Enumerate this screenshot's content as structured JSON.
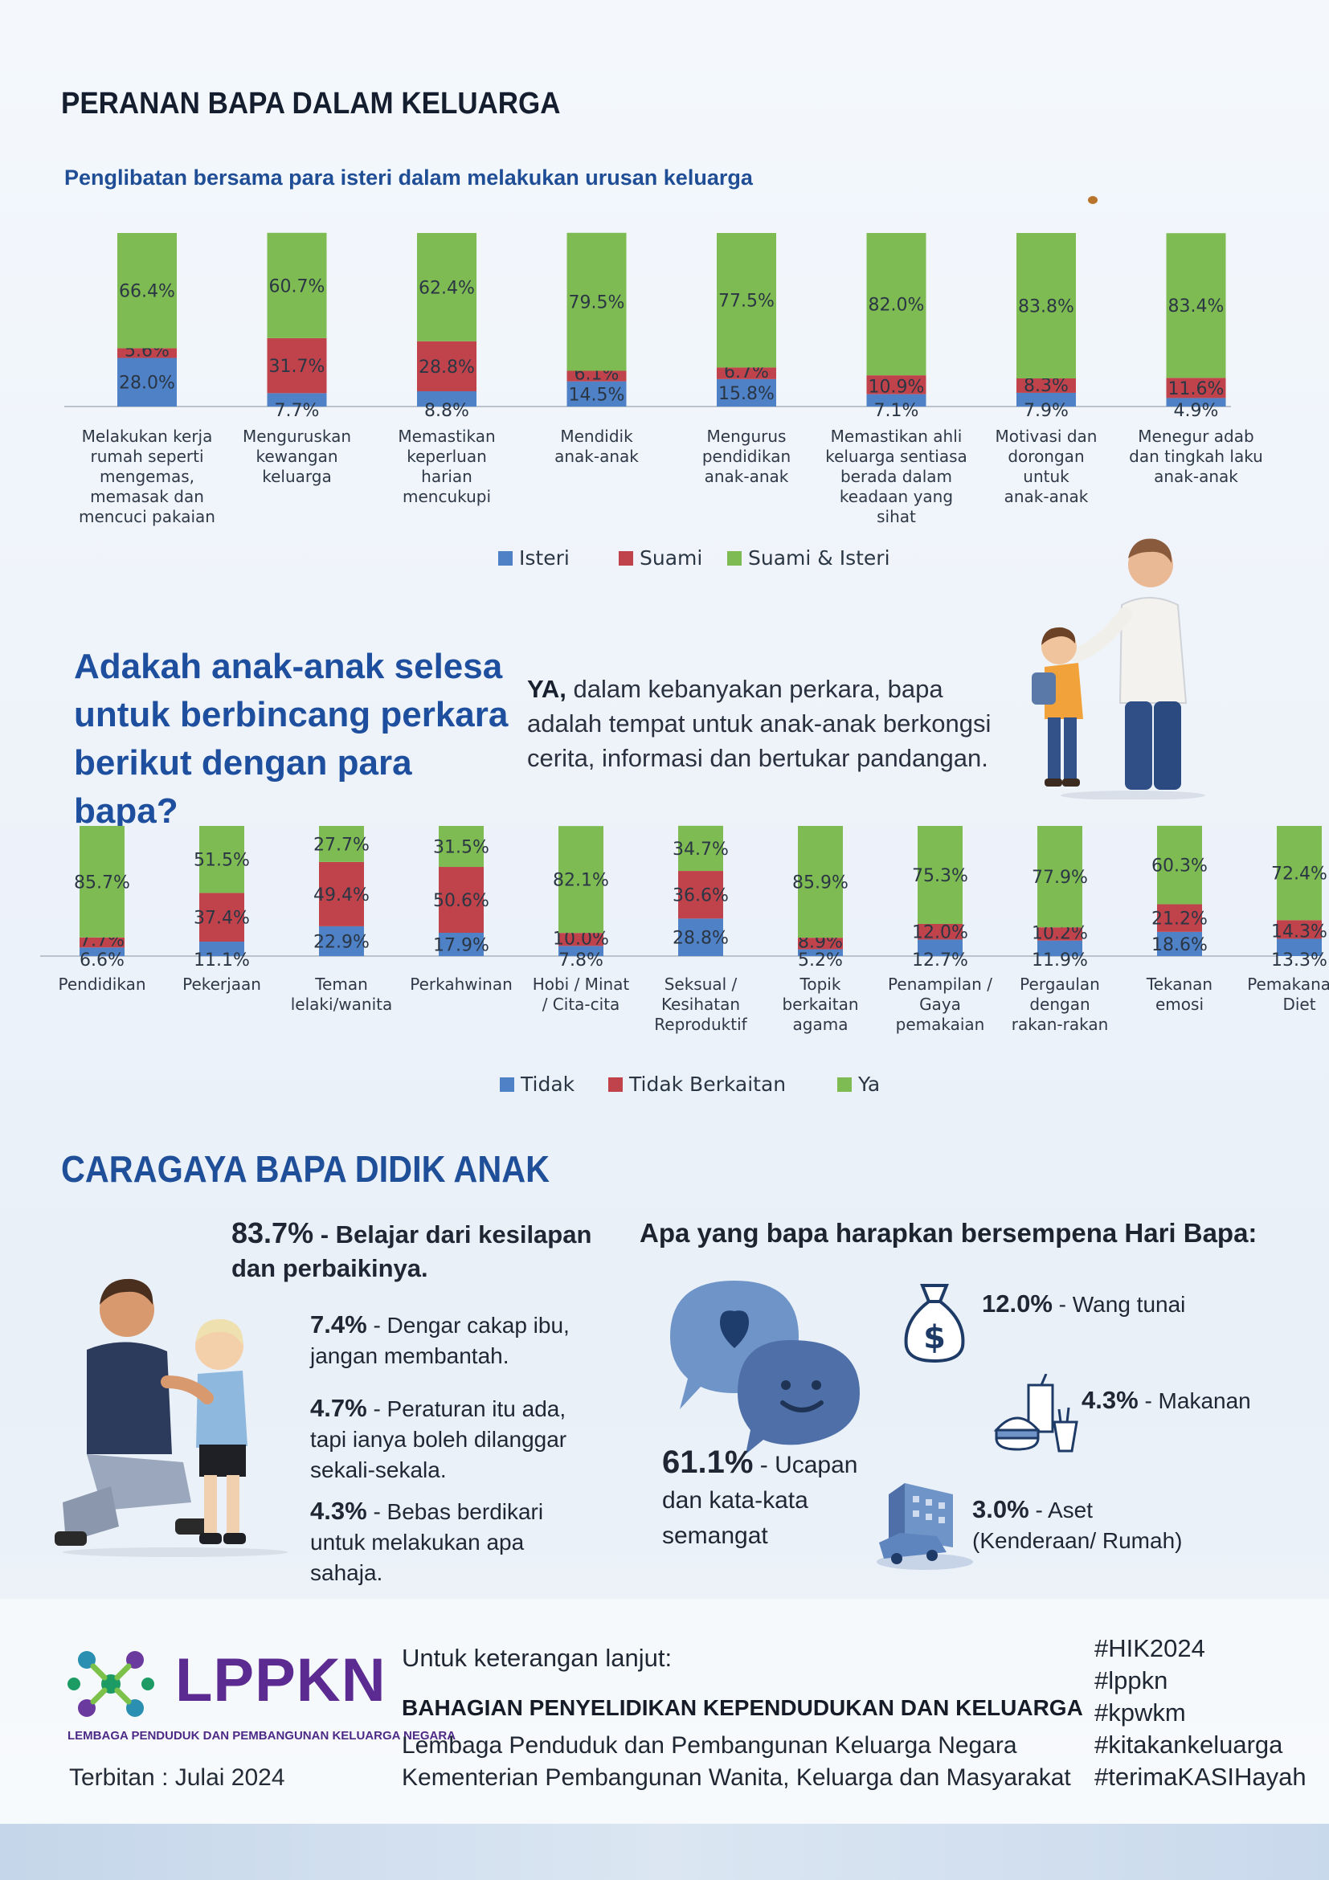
{
  "header": {
    "title": "PERANAN BAPA DALAM KELUARGA",
    "chart1_subtitle": "Penglibatan bersama para isteri dalam melakukan urusan keluarga"
  },
  "colors": {
    "blue": "#4f81c6",
    "red": "#c0434b",
    "green": "#7fbb53",
    "navy": "#1e4f9e"
  },
  "chart_data": [
    {
      "type": "bar",
      "stacked": true,
      "title": "Penglibatan bersama para isteri dalam melakukan urusan keluarga",
      "categories": [
        "Melakukan kerja rumah seperti mengemas, memasak dan mencuci pakaian",
        "Menguruskan kewangan keluarga",
        "Memastikan keperluan harian mencukupi",
        "Mendidik anak-anak",
        "Mengurus pendidikan anak-anak",
        "Memastikan ahli keluarga sentiasa berada dalam keadaan yang sihat",
        "Motivasi dan dorongan untuk anak-anak",
        "Menegur adab dan tingkah laku anak-anak"
      ],
      "category_lines": [
        [
          "Melakukan kerja",
          "rumah seperti",
          "mengemas,",
          "memasak dan",
          "mencuci pakaian"
        ],
        [
          "Menguruskan",
          "kewangan",
          "keluarga"
        ],
        [
          "Memastikan",
          "keperluan",
          "harian",
          "mencukupi"
        ],
        [
          "Mendidik",
          "anak-anak"
        ],
        [
          "Mengurus",
          "pendidikan",
          "anak-anak"
        ],
        [
          "Memastikan ahli",
          "keluarga sentiasa",
          "berada dalam",
          "keadaan yang",
          "sihat"
        ],
        [
          "Motivasi dan",
          "dorongan",
          "untuk",
          "anak-anak"
        ],
        [
          "Menegur adab",
          "dan tingkah laku",
          "anak-anak"
        ]
      ],
      "series": [
        {
          "name": "Isteri",
          "values": [
            28.0,
            7.7,
            8.8,
            14.5,
            15.8,
            7.1,
            7.9,
            4.9
          ],
          "labels": [
            "28.0%",
            "7.7%",
            "8.8%",
            "14.5%",
            "15.8%",
            "7.1%",
            "7.9%",
            "4.9%"
          ],
          "color": "#4f81c6"
        },
        {
          "name": "Suami",
          "values": [
            5.6,
            31.7,
            28.8,
            6.1,
            6.7,
            10.9,
            8.3,
            11.6
          ],
          "labels": [
            "5.6%",
            "31.7%",
            "28.8%",
            "6.1%",
            "6.7%",
            "10.9%",
            "8.3%",
            "11.6%"
          ],
          "color": "#c0434b"
        },
        {
          "name": "Suami & Isteri",
          "values": [
            66.4,
            60.7,
            62.4,
            79.5,
            77.5,
            82.0,
            83.8,
            83.4
          ],
          "labels": [
            "66.4%",
            "60.7%",
            "62.4%",
            "79.5%",
            "77.5%",
            "82.0%",
            "83.8%",
            "83.4%"
          ],
          "color": "#7fbb53"
        }
      ],
      "ylim": [
        0,
        100
      ],
      "legend": "bottom"
    },
    {
      "type": "bar",
      "stacked": true,
      "title": "Adakah anak-anak selesa untuk berbincang perkara berikut dengan para bapa?",
      "categories": [
        "Pendidikan",
        "Pekerjaan",
        "Teman lelaki/wanita",
        "Perkahwinan",
        "Hobi / Minat / Cita-cita",
        "Seksual / Kesihatan Reproduktif",
        "Topik berkaitan agama",
        "Penampilan / Gaya pemakaian",
        "Pergaulan dengan rakan-rakan",
        "Tekanan emosi",
        "Pemakanan / Diet"
      ],
      "category_lines": [
        [
          "Pendidikan"
        ],
        [
          "Pekerjaan"
        ],
        [
          "Teman",
          "lelaki/wanita"
        ],
        [
          "Perkahwinan"
        ],
        [
          "Hobi / Minat",
          "/ Cita-cita"
        ],
        [
          "Seksual /",
          "Kesihatan",
          "Reproduktif"
        ],
        [
          "Topik",
          "berkaitan",
          "agama"
        ],
        [
          "Penampilan /",
          "Gaya",
          "pemakaian"
        ],
        [
          "Pergaulan",
          "dengan",
          "rakan-rakan"
        ],
        [
          "Tekanan",
          "emosi"
        ],
        [
          "Pemakanan /",
          "Diet"
        ]
      ],
      "series": [
        {
          "name": "Tidak",
          "values": [
            6.6,
            11.1,
            22.9,
            17.9,
            7.8,
            28.8,
            5.2,
            12.7,
            11.9,
            18.6,
            13.3
          ],
          "labels": [
            "6.6%",
            "11.1%",
            "22.9%",
            "17.9%",
            "7.8%",
            "28.8%",
            "5.2%",
            "12.7%",
            "11.9%",
            "18.6%",
            "13.3%"
          ],
          "color": "#4f81c6"
        },
        {
          "name": "Tidak Berkaitan",
          "values": [
            7.7,
            37.4,
            49.4,
            50.6,
            10.0,
            36.6,
            8.9,
            12.0,
            10.2,
            21.2,
            14.3
          ],
          "labels": [
            "7.7%",
            "37.4%",
            "49.4%",
            "50.6%",
            "10.0%",
            "36.6%",
            "8.9%",
            "12.0%",
            "10.2%",
            "21.2%",
            "14.3%"
          ],
          "color": "#c0434b"
        },
        {
          "name": "Ya",
          "values": [
            85.7,
            51.5,
            27.7,
            31.5,
            82.1,
            34.7,
            85.9,
            75.3,
            77.9,
            60.3,
            72.4
          ],
          "labels": [
            "85.7%",
            "51.5%",
            "27.7%",
            "31.5%",
            "82.1%",
            "34.7%",
            "85.9%",
            "75.3%",
            "77.9%",
            "60.3%",
            "72.4%"
          ],
          "color": "#7fbb53"
        }
      ],
      "ylim": [
        0,
        100
      ],
      "legend": "bottom"
    }
  ],
  "question": {
    "lines": [
      "Adakah anak-anak selesa",
      "untuk berbincang perkara",
      "berikut dengan para bapa?"
    ],
    "answer_bold": "YA,",
    "answer_rest": " dalam kebanyakan perkara, bapa adalah tempat untuk anak-anak berkongsi cerita, informasi dan bertukar pandangan."
  },
  "caragaya": {
    "title": "CARAGAYA BAPA DIDIK ANAK",
    "items": [
      {
        "pct": "83.7%",
        "text": " - Belajar dari kesilapan dan perbaikinya."
      },
      {
        "pct": "7.4%",
        "text": " - Dengar cakap ibu, jangan membantah."
      },
      {
        "pct": "4.7%",
        "text": " - Peraturan itu ada, tapi ianya boleh dilanggar sekali-sekala."
      },
      {
        "pct": "4.3%",
        "text": " - Bebas berdikari untuk melakukan apa sahaja."
      }
    ]
  },
  "hari_bapa": {
    "title": "Apa yang bapa harapkan bersempena Hari Bapa:",
    "items": [
      {
        "pct": "61.1%",
        "text": " - Ucapan dan kata-kata semangat"
      },
      {
        "pct": "12.0%",
        "text": " - Wang tunai"
      },
      {
        "pct": "4.3%",
        "text": " - Makanan"
      },
      {
        "pct": "3.0%",
        "text": " - Aset (Kenderaan/ Rumah)"
      }
    ]
  },
  "footer": {
    "logo_text": "LPPKN",
    "logo_subtitle": "LEMBAGA PENDUDUK DAN PEMBANGUNAN KELUARGA NEGARA",
    "published": "Terbitan : Julai 2024",
    "info_label": "Untuk keterangan lanjut:",
    "dept": "BAHAGIAN PENYELIDIKAN KEPENDUDUKAN DAN KELUARGA",
    "org1": "Lembaga Penduduk dan Pembangunan Keluarga Negara",
    "org2": "Kementerian Pembangunan Wanita, Keluarga dan Masyarakat",
    "hashtags": [
      "#HIK2024",
      "#lppkn",
      "#kpwkm",
      "#kitakankeluarga",
      "#terimaKASIHayah"
    ]
  }
}
